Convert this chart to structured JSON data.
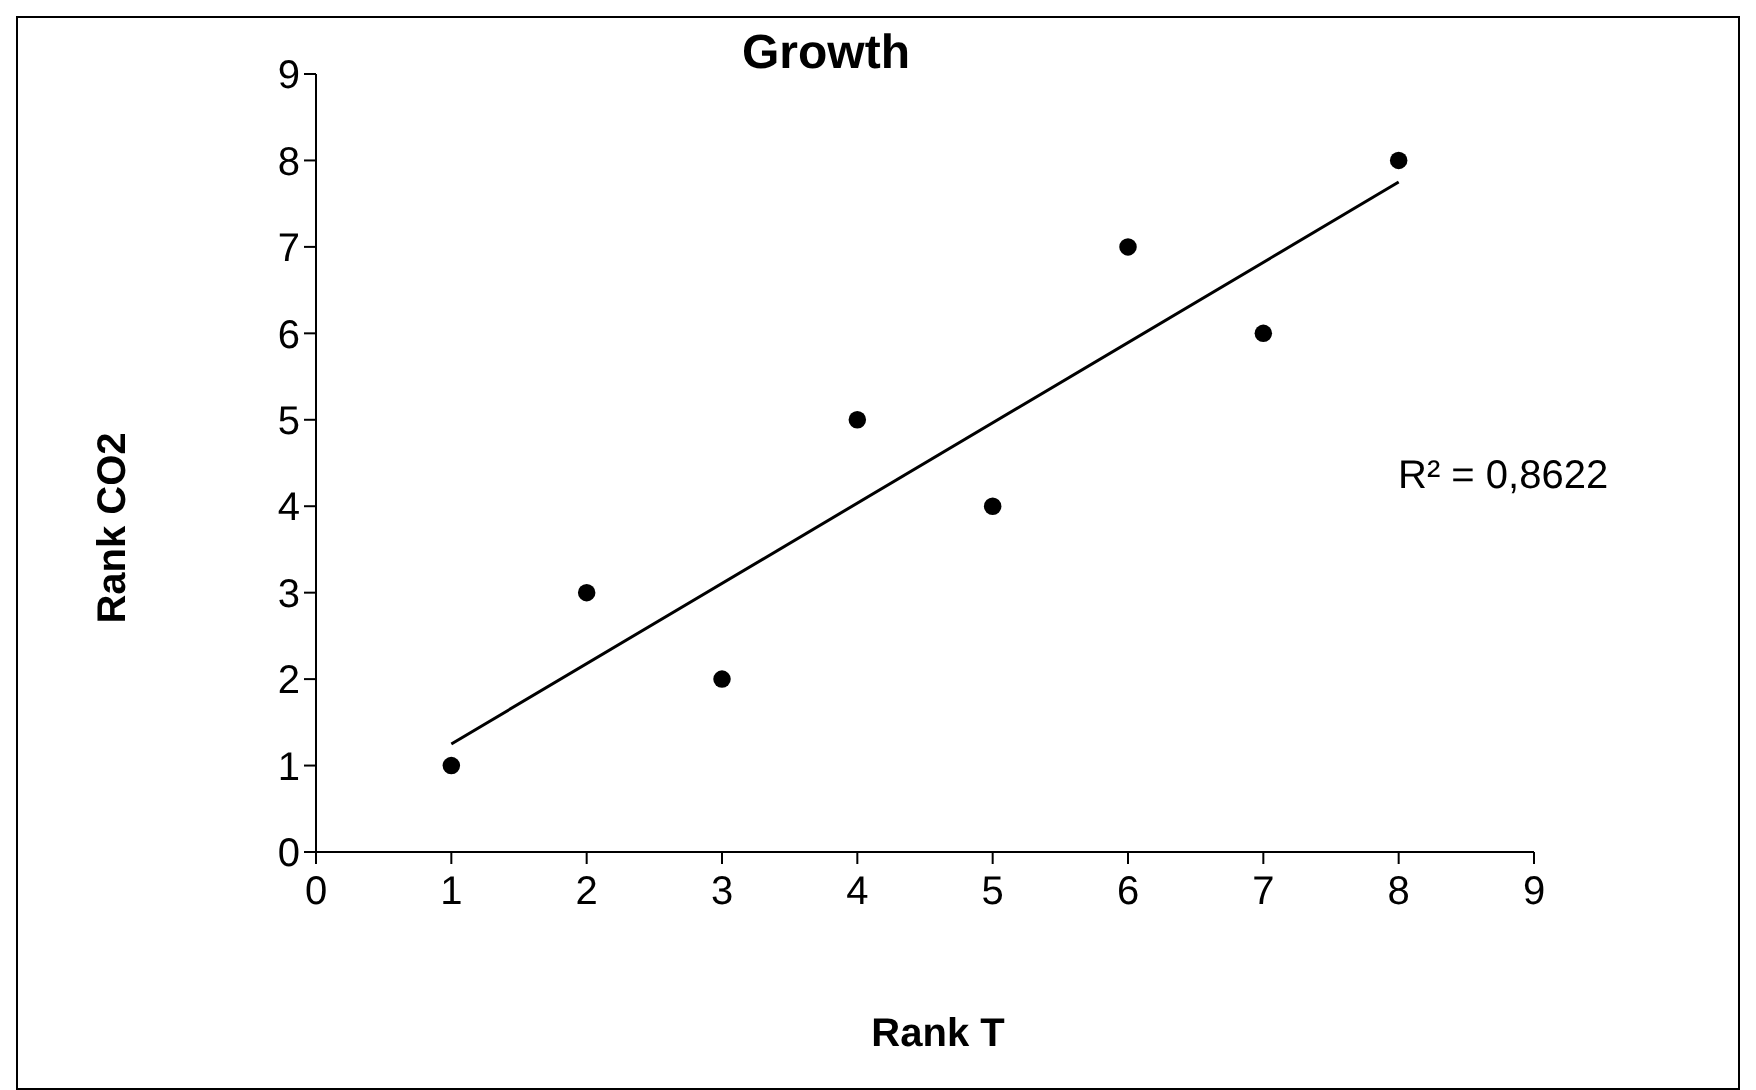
{
  "chart_data": {
    "type": "scatter",
    "title": "Growth",
    "xlabel": "Rank T",
    "ylabel": "Rank CO2",
    "x": [
      1,
      2,
      3,
      4,
      5,
      6,
      7,
      8
    ],
    "series": [
      {
        "color": "#000000",
        "values": [
          1,
          3,
          2,
          5,
          4,
          7,
          6,
          8
        ]
      },
      {
        "type": "line",
        "color": "#000000",
        "marker": "none",
        "x": [
          1,
          8
        ],
        "values": [
          1.25,
          7.75
        ]
      }
    ],
    "xlim": [
      0,
      9
    ],
    "xticks": [
      0,
      1,
      2,
      3,
      4,
      5,
      6,
      7,
      8,
      9
    ],
    "ylim": [
      0,
      9
    ],
    "yticks": [
      0,
      1,
      2,
      3,
      4,
      5,
      6,
      7,
      8,
      9
    ],
    "marker": "circle",
    "line_style": "solid",
    "grid": false,
    "legend": false,
    "annotations": [
      "R² = 0,8622"
    ]
  }
}
